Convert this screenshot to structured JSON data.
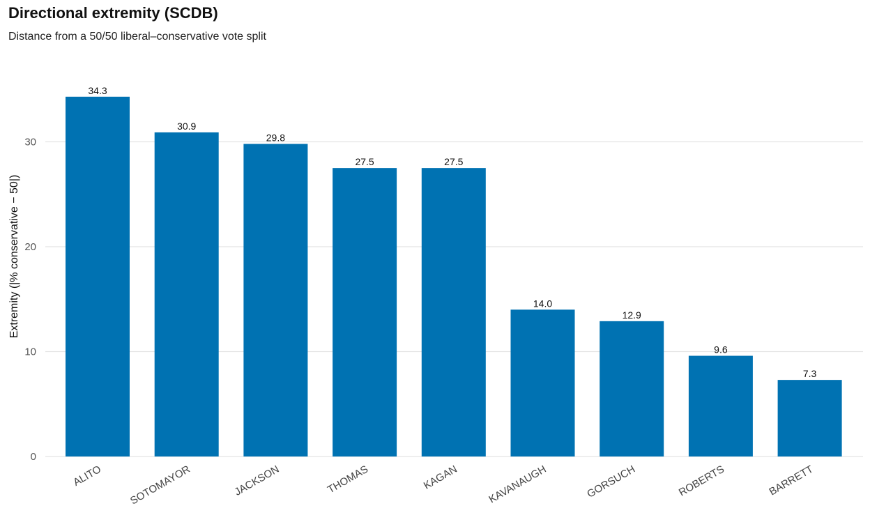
{
  "chart_data": {
    "type": "bar",
    "title": "Directional extremity (SCDB)",
    "subtitle": "Distance from a 50/50 liberal–conservative vote split",
    "xlabel": "",
    "ylabel": "Extremity (|% conservative − 50|)",
    "categories": [
      "ALITO",
      "SOTOMAYOR",
      "JACKSON",
      "THOMAS",
      "KAGAN",
      "KAVANAUGH",
      "GORSUCH",
      "ROBERTS",
      "BARRETT"
    ],
    "values": [
      34.3,
      30.9,
      29.8,
      27.5,
      27.5,
      14.0,
      12.9,
      9.6,
      7.3
    ],
    "data_labels": [
      "34.3",
      "30.9",
      "29.8",
      "27.5",
      "27.5",
      "14.0",
      "12.9",
      "9.6",
      "7.3"
    ],
    "yticks": [
      0,
      10,
      20,
      30
    ],
    "ylim": [
      0,
      35
    ],
    "grid": true,
    "bar_color": "#0072B2"
  }
}
